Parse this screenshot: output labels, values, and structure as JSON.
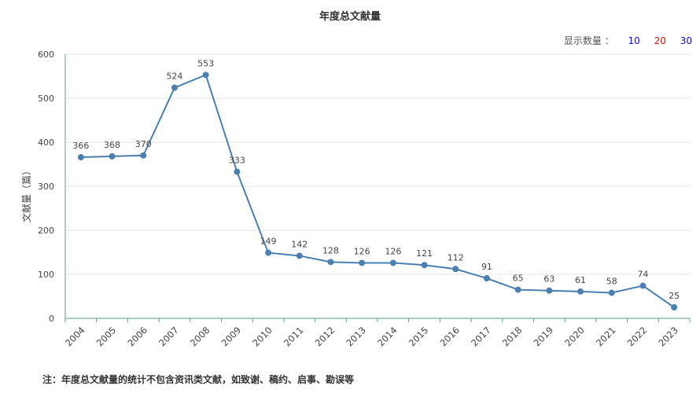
{
  "display_count": {
    "label": "显示数量 ：",
    "options": [
      {
        "label": "10",
        "color": "#1010e0"
      },
      {
        "label": "20",
        "color": "#e01010"
      },
      {
        "label": "30",
        "color": "#1010a0"
      }
    ]
  },
  "footnote": "注：年度总文献量的统计不包含资讯类文献，如致谢、稿约、启事、勘误等",
  "chart_data": {
    "type": "line",
    "title": "年度总文献量",
    "xlabel": "",
    "ylabel": "文献量（篇）",
    "ylim": [
      0,
      600
    ],
    "yticks": [
      0,
      100,
      200,
      300,
      400,
      500,
      600
    ],
    "grid": true,
    "line_color": "#4a7fb0",
    "categories": [
      "2004",
      "2005",
      "2006",
      "2007",
      "2008",
      "2009",
      "2010",
      "2011",
      "2012",
      "2013",
      "2014",
      "2015",
      "2016",
      "2017",
      "2018",
      "2019",
      "2020",
      "2021",
      "2022",
      "2023"
    ],
    "series": [
      {
        "values": [
          366,
          368,
          370,
          524,
          553,
          333,
          149,
          142,
          128,
          126,
          126,
          121,
          112,
          91,
          65,
          63,
          61,
          58,
          74,
          25
        ]
      }
    ]
  }
}
